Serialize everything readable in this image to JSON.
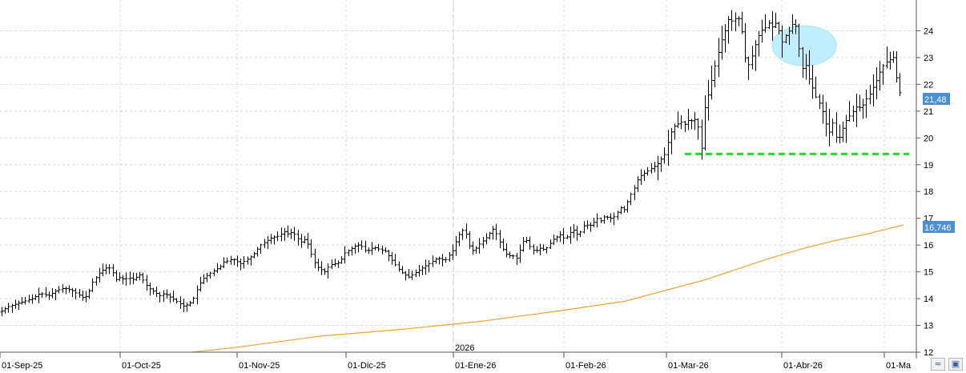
{
  "chart_data": {
    "type": "ohlc",
    "ylim": [
      12,
      25
    ],
    "yticks": [
      "12",
      "13",
      "14",
      "15",
      "16",
      "17",
      "18",
      "19",
      "20",
      "21",
      "22",
      "23",
      "24"
    ],
    "xtick_labels": [
      "01-Sep-25",
      "01-Oct-25",
      "01-Nov-25",
      "01-Dic-25",
      "01-Ene-26",
      "01-Feb-26",
      "01-Mar-26",
      "01-Abr-26",
      "01-Ma"
    ],
    "year_label": "2026",
    "last_price_label": "21,48",
    "moving_average_label": "16,746",
    "support_level": 19.4,
    "colors": {
      "bars": "#000000",
      "moving_average": "#f0a030",
      "support_line": "#22dd22",
      "highlight": "#bfefff",
      "price_badge": "#4a90d9",
      "grid": "#d8d8d8"
    },
    "price_path": [
      [
        0,
        13.5
      ],
      [
        10,
        13.7
      ],
      [
        20,
        13.8
      ],
      [
        30,
        13.9
      ],
      [
        40,
        14.0
      ],
      [
        50,
        14.2
      ],
      [
        60,
        14.1
      ],
      [
        70,
        14.3
      ],
      [
        80,
        14.4
      ],
      [
        90,
        14.3
      ],
      [
        100,
        14.1
      ],
      [
        105,
        14.0
      ],
      [
        110,
        14.2
      ],
      [
        115,
        14.6
      ],
      [
        120,
        14.8
      ],
      [
        125,
        15.0
      ],
      [
        130,
        15.1
      ],
      [
        135,
        15.2
      ],
      [
        140,
        15.0
      ],
      [
        145,
        14.7
      ],
      [
        150,
        14.8
      ],
      [
        155,
        14.7
      ],
      [
        160,
        14.8
      ],
      [
        165,
        14.7
      ],
      [
        170,
        14.8
      ],
      [
        175,
        14.9
      ],
      [
        180,
        14.6
      ],
      [
        185,
        14.4
      ],
      [
        190,
        14.3
      ],
      [
        195,
        14.2
      ],
      [
        200,
        14.1
      ],
      [
        205,
        14.2
      ],
      [
        210,
        14.1
      ],
      [
        215,
        14.0
      ],
      [
        220,
        13.9
      ],
      [
        225,
        13.8
      ],
      [
        230,
        13.7
      ],
      [
        235,
        13.8
      ],
      [
        240,
        13.9
      ],
      [
        245,
        14.3
      ],
      [
        250,
        14.6
      ],
      [
        255,
        14.8
      ],
      [
        260,
        14.9
      ],
      [
        265,
        15.0
      ],
      [
        270,
        15.1
      ],
      [
        275,
        15.2
      ],
      [
        280,
        15.4
      ],
      [
        285,
        15.4
      ],
      [
        290,
        15.5
      ],
      [
        295,
        15.4
      ],
      [
        300,
        15.3
      ],
      [
        305,
        15.4
      ],
      [
        310,
        15.5
      ],
      [
        315,
        15.6
      ],
      [
        320,
        15.8
      ],
      [
        325,
        16.0
      ],
      [
        330,
        16.1
      ],
      [
        335,
        16.2
      ],
      [
        340,
        16.3
      ],
      [
        345,
        16.3
      ],
      [
        350,
        16.4
      ],
      [
        355,
        16.5
      ],
      [
        360,
        16.4
      ],
      [
        365,
        16.5
      ],
      [
        370,
        16.3
      ],
      [
        375,
        16.1
      ],
      [
        380,
        16.2
      ],
      [
        385,
        16.0
      ],
      [
        390,
        15.5
      ],
      [
        395,
        15.2
      ],
      [
        400,
        15.1
      ],
      [
        405,
        15.0
      ],
      [
        410,
        15.2
      ],
      [
        415,
        15.3
      ],
      [
        420,
        15.3
      ],
      [
        425,
        15.4
      ],
      [
        430,
        15.7
      ],
      [
        435,
        15.8
      ],
      [
        440,
        15.9
      ],
      [
        445,
        16.0
      ],
      [
        450,
        16.0
      ],
      [
        455,
        15.8
      ],
      [
        460,
        15.8
      ],
      [
        465,
        15.9
      ],
      [
        470,
        15.9
      ],
      [
        475,
        15.8
      ],
      [
        480,
        15.8
      ],
      [
        485,
        15.6
      ],
      [
        490,
        15.4
      ],
      [
        495,
        15.2
      ],
      [
        500,
        15.0
      ],
      [
        505,
        14.9
      ],
      [
        510,
        14.8
      ],
      [
        515,
        14.9
      ],
      [
        520,
        15.0
      ],
      [
        525,
        15.1
      ],
      [
        530,
        15.2
      ],
      [
        535,
        15.3
      ],
      [
        540,
        15.4
      ],
      [
        545,
        15.5
      ],
      [
        550,
        15.5
      ],
      [
        555,
        15.4
      ],
      [
        560,
        15.6
      ],
      [
        565,
        15.8
      ],
      [
        570,
        16.2
      ],
      [
        575,
        16.5
      ],
      [
        580,
        16.6
      ],
      [
        585,
        16.0
      ],
      [
        590,
        15.8
      ],
      [
        595,
        15.9
      ],
      [
        600,
        16.1
      ],
      [
        605,
        16.2
      ],
      [
        610,
        16.4
      ],
      [
        615,
        16.6
      ],
      [
        620,
        16.4
      ],
      [
        625,
        16.0
      ],
      [
        630,
        15.7
      ],
      [
        635,
        15.6
      ],
      [
        640,
        15.6
      ],
      [
        645,
        15.5
      ],
      [
        650,
        15.9
      ],
      [
        655,
        16.3
      ],
      [
        660,
        16.0
      ],
      [
        665,
        15.8
      ],
      [
        670,
        15.8
      ],
      [
        675,
        15.9
      ],
      [
        680,
        15.8
      ],
      [
        685,
        16.0
      ],
      [
        690,
        16.2
      ],
      [
        695,
        16.3
      ],
      [
        700,
        16.4
      ],
      [
        705,
        16.2
      ],
      [
        710,
        16.4
      ],
      [
        715,
        16.6
      ],
      [
        720,
        16.4
      ],
      [
        725,
        16.5
      ],
      [
        730,
        16.8
      ],
      [
        735,
        16.7
      ],
      [
        740,
        16.8
      ],
      [
        745,
        17.0
      ],
      [
        750,
        16.9
      ],
      [
        755,
        17.1
      ],
      [
        760,
        17.0
      ],
      [
        765,
        17.0
      ],
      [
        770,
        17.2
      ],
      [
        775,
        17.4
      ],
      [
        780,
        17.3
      ],
      [
        785,
        17.8
      ],
      [
        790,
        18.0
      ],
      [
        795,
        18.4
      ],
      [
        800,
        18.6
      ],
      [
        805,
        18.7
      ],
      [
        810,
        18.8
      ],
      [
        815,
        18.9
      ],
      [
        820,
        19.0
      ],
      [
        825,
        19.2
      ],
      [
        830,
        19.4
      ],
      [
        835,
        20.0
      ],
      [
        840,
        20.4
      ],
      [
        845,
        20.5
      ],
      [
        850,
        20.6
      ],
      [
        855,
        20.5
      ],
      [
        860,
        20.7
      ],
      [
        865,
        20.6
      ],
      [
        870,
        20.8
      ],
      [
        875,
        19.4
      ],
      [
        880,
        21.2
      ],
      [
        885,
        21.7
      ],
      [
        890,
        22.4
      ],
      [
        895,
        23.0
      ],
      [
        900,
        23.6
      ],
      [
        905,
        24.0
      ],
      [
        910,
        24.5
      ],
      [
        915,
        24.3
      ],
      [
        920,
        24.6
      ],
      [
        925,
        24.2
      ],
      [
        930,
        23.0
      ],
      [
        935,
        22.7
      ],
      [
        940,
        23.2
      ],
      [
        945,
        23.7
      ],
      [
        950,
        24.0
      ],
      [
        955,
        24.1
      ],
      [
        960,
        24.3
      ],
      [
        965,
        24.1
      ],
      [
        970,
        24.4
      ],
      [
        975,
        23.5
      ],
      [
        980,
        23.8
      ],
      [
        985,
        24.0
      ],
      [
        990,
        24.3
      ],
      [
        995,
        24.1
      ],
      [
        1000,
        22.5
      ],
      [
        1005,
        22.8
      ],
      [
        1010,
        22.2
      ],
      [
        1015,
        21.8
      ],
      [
        1020,
        21.4
      ],
      [
        1025,
        21.2
      ],
      [
        1030,
        20.6
      ],
      [
        1035,
        20.2
      ],
      [
        1040,
        20.6
      ],
      [
        1045,
        19.8
      ],
      [
        1050,
        20.2
      ],
      [
        1055,
        20.6
      ],
      [
        1060,
        20.8
      ],
      [
        1065,
        21.0
      ],
      [
        1070,
        21.2
      ],
      [
        1075,
        21.1
      ],
      [
        1080,
        21.4
      ],
      [
        1085,
        21.6
      ],
      [
        1090,
        21.9
      ],
      [
        1095,
        22.2
      ],
      [
        1100,
        22.6
      ],
      [
        1105,
        22.8
      ],
      [
        1110,
        22.9
      ],
      [
        1115,
        23.0
      ],
      [
        1120,
        22.1
      ],
      [
        1125,
        21.5
      ]
    ],
    "moving_average_path": [
      [
        240,
        12.0
      ],
      [
        300,
        12.2
      ],
      [
        400,
        12.6
      ],
      [
        500,
        12.85
      ],
      [
        600,
        13.15
      ],
      [
        700,
        13.55
      ],
      [
        780,
        13.9
      ],
      [
        830,
        14.3
      ],
      [
        880,
        14.7
      ],
      [
        920,
        15.1
      ],
      [
        960,
        15.5
      ],
      [
        1000,
        15.85
      ],
      [
        1040,
        16.15
      ],
      [
        1080,
        16.4
      ],
      [
        1128,
        16.75
      ]
    ]
  }
}
